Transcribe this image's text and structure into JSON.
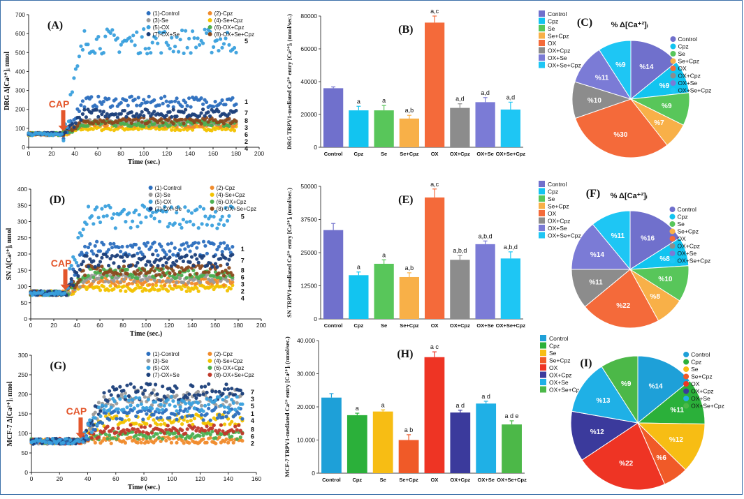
{
  "chart_data": [
    {
      "type": "scatter",
      "panel": "(A)",
      "cap_label": "CAP",
      "cap_x": 30,
      "xlabel": "Time (sec.)",
      "ylabel": "DRG Δ[Ca²⁺]ᵢ nmol",
      "xlim": [
        0,
        200
      ],
      "ylim": [
        0,
        700
      ],
      "xticks": [
        "0",
        "20",
        "40",
        "60",
        "80",
        "100",
        "120",
        "140",
        "160",
        "180",
        "200"
      ],
      "yticks": [
        "0",
        "100",
        "200",
        "300",
        "400",
        "500",
        "600",
        "700"
      ],
      "legend": [
        "(1)-Control",
        "(2)-Cpz",
        "(3)-Se",
        "(4)-Se+Cpz",
        "(5)-OX",
        "(6)-OX+Cpz",
        "(7)-OX+Se",
        "(8)-OX+Se+Cpz"
      ],
      "xmax": 180,
      "series": [
        {
          "name": "(1)-Control",
          "end": 240,
          "color": "#2c6fbf",
          "tag": "1"
        },
        {
          "name": "(2)-Cpz",
          "end": 120,
          "color": "#f08b2c",
          "tag": "2"
        },
        {
          "name": "(3)-Se",
          "end": 130,
          "color": "#9a9a9a",
          "tag": "3"
        },
        {
          "name": "(4)-Se+Cpz",
          "end": 100,
          "color": "#f2c200",
          "tag": "4"
        },
        {
          "name": "(5)-OX",
          "end": 560,
          "color": "#3aa0dd",
          "tag": "5"
        },
        {
          "name": "(6)-OX+Cpz",
          "end": 125,
          "color": "#4caf50",
          "tag": "6"
        },
        {
          "name": "(7)-OX+Se",
          "end": 180,
          "color": "#1b3f7a",
          "tag": "7"
        },
        {
          "name": "(8)-OX+Se+Cpz",
          "end": 140,
          "color": "#8b4a1e",
          "tag": "8"
        }
      ]
    },
    {
      "type": "bar",
      "panel": "(B)",
      "ylabel": "DRG TRPV1-mediated Ca²⁺ entry [Ca²⁺]ᵢ (nmol/sec.)",
      "ylim": [
        0,
        80000
      ],
      "yticks": [
        "0",
        "20000",
        "40000",
        "60000",
        "80000"
      ],
      "categories": [
        "Control",
        "Cpz",
        "Se",
        "Se+Cpz",
        "OX",
        "OX+Cpz",
        "OX+Se",
        "OX+Se+Cpz"
      ],
      "values": [
        36000,
        22500,
        22500,
        17500,
        76000,
        24000,
        27500,
        23000
      ],
      "errors": [
        800,
        2500,
        3000,
        2000,
        4000,
        2500,
        2800,
        4500
      ],
      "annotations": [
        "",
        "a",
        "a",
        "a,b",
        "a,c",
        "a,d",
        "a,d",
        "a,d"
      ],
      "colors": [
        "#7070cc",
        "#12c4f0",
        "#58c65a",
        "#f8b048",
        "#f46a3a",
        "#8c8c8c",
        "#7b7bd6",
        "#1ec6f4"
      ]
    },
    {
      "type": "pie",
      "panel": "(C)",
      "title": "% Δ[Ca⁺²]ᵢ",
      "labels": [
        "Control",
        "Cpz",
        "Se",
        "Se+Cpz",
        "OX",
        "OX+Cpz",
        "OX+Se",
        "OX+Se+Cpz"
      ],
      "values": [
        14,
        9,
        9,
        7,
        30,
        10,
        11,
        9
      ],
      "slice_labels": [
        "%14",
        "%9",
        "%9",
        "%7",
        "%30",
        "%10",
        "%11",
        "%9"
      ],
      "colors": [
        "#7070cc",
        "#12c4f0",
        "#58c65a",
        "#f8b048",
        "#f46a3a",
        "#8c8c8c",
        "#7b7bd6",
        "#1ec6f4"
      ]
    },
    {
      "type": "scatter",
      "panel": "(D)",
      "cap_label": "CAP",
      "cap_x": 30,
      "xlabel": "Time (sec.)",
      "ylabel": "SN Δ[Ca²⁺]ᵢ nmol",
      "xlim": [
        0,
        200
      ],
      "ylim": [
        0,
        400
      ],
      "xticks": [
        "0",
        "20",
        "40",
        "60",
        "80",
        "100",
        "120",
        "140",
        "160",
        "180",
        "200"
      ],
      "yticks": [
        "0",
        "50",
        "100",
        "150",
        "200",
        "250",
        "300",
        "350",
        "400"
      ],
      "legend": [
        "(1)-Control",
        "(2)-Cpz",
        "(3)-Se",
        "(4)-Se+Cpz",
        "(5)-OX",
        "(6)-OX+Cpz",
        "(7)-OX+Se",
        "(8)-OX+Se+Cpz"
      ],
      "xmax": 175,
      "series": [
        {
          "name": "(1)-Control",
          "end": 215,
          "color": "#2c6fbf",
          "tag": "1"
        },
        {
          "name": "(2)-Cpz",
          "end": 115,
          "color": "#f08b2c",
          "tag": "2"
        },
        {
          "name": "(3)-Se",
          "end": 125,
          "color": "#9a9a9a",
          "tag": "3"
        },
        {
          "name": "(4)-Se+Cpz",
          "end": 95,
          "color": "#f2c200",
          "tag": "4"
        },
        {
          "name": "(5)-OX",
          "end": 315,
          "color": "#3aa0dd",
          "tag": "5"
        },
        {
          "name": "(6)-OX+Cpz",
          "end": 140,
          "color": "#4caf50",
          "tag": "6"
        },
        {
          "name": "(7)-OX+Se",
          "end": 180,
          "color": "#1b3f7a",
          "tag": "7"
        },
        {
          "name": "(8)-OX+Se+Cpz",
          "end": 150,
          "color": "#8b4a1e",
          "tag": "8"
        }
      ]
    },
    {
      "type": "bar",
      "panel": "(E)",
      "ylabel": "SN TRPV1-mediated Ca²⁺ entry [Ca²⁺]ᵢ (nmol/sec.)",
      "ylim": [
        0,
        50000
      ],
      "yticks": [
        "0",
        "12500",
        "25000",
        "37500",
        "50000"
      ],
      "categories": [
        "Control",
        "Cpz",
        "Se",
        "Se+Cpz",
        "OX",
        "OX+Cpz",
        "OX+Se",
        "OX+Se+Cpz"
      ],
      "values": [
        33500,
        16500,
        20800,
        15800,
        45800,
        22300,
        28200,
        22800
      ],
      "errors": [
        2500,
        1200,
        1500,
        1600,
        3200,
        1600,
        1200,
        2500
      ],
      "annotations": [
        "",
        "a",
        "a",
        "a,b",
        "a,c",
        "a,b,d",
        "a,b,d",
        "a,b,d"
      ],
      "colors": [
        "#7070cc",
        "#12c4f0",
        "#58c65a",
        "#f8b048",
        "#f46a3a",
        "#8c8c8c",
        "#7b7bd6",
        "#1ec6f4"
      ]
    },
    {
      "type": "pie",
      "panel": "(F)",
      "title": "% Δ[Ca⁺²]ᵢ",
      "labels": [
        "Control",
        "Cpz",
        "Se",
        "Se+Cpz",
        "OX",
        "OX+Cpz",
        "OX+Se",
        "OX+Se+Cpz"
      ],
      "values": [
        16,
        8,
        10,
        8,
        22,
        11,
        14,
        11
      ],
      "slice_labels": [
        "%16",
        "%8",
        "%10",
        "%8",
        "%22",
        "%11",
        "%14",
        "%11"
      ],
      "colors": [
        "#7070cc",
        "#12c4f0",
        "#58c65a",
        "#f8b048",
        "#f46a3a",
        "#8c8c8c",
        "#7b7bd6",
        "#1ec6f4"
      ]
    },
    {
      "type": "scatter",
      "panel": "(G)",
      "cap_label": "CAP",
      "cap_x": 35,
      "xlabel": "Time (sec.)",
      "ylabel": "MCF-7 Δ[Ca²⁺]ᵢ nmol",
      "xlim": [
        0,
        160
      ],
      "ylim": [
        0,
        300
      ],
      "xticks": [
        "0",
        "20",
        "40",
        "60",
        "80",
        "100",
        "120",
        "140",
        "160"
      ],
      "yticks": [
        "0",
        "50",
        "100",
        "150",
        "200",
        "250",
        "300"
      ],
      "legend": [
        "(1)-Control",
        "(2)-Cpz",
        "(3)-Se",
        "(4)-Se+Cpz",
        "(5)-OX",
        "(6)-OX+Cpz",
        "(7)-OX+Se",
        "(8)-OX+Se+Cpz"
      ],
      "xmax": 150,
      "series": [
        {
          "name": "(1)-Control",
          "end": 150,
          "color": "#2c6fbf",
          "tag": "1"
        },
        {
          "name": "(2)-Cpz",
          "end": 82,
          "color": "#f08b2c",
          "tag": "2"
        },
        {
          "name": "(3)-Se",
          "end": 190,
          "color": "#9a9a9a",
          "tag": "3"
        },
        {
          "name": "(4)-Se+Cpz",
          "end": 135,
          "color": "#f2c200",
          "tag": "4"
        },
        {
          "name": "(5)-OX",
          "end": 175,
          "color": "#3aa0dd",
          "tag": "5"
        },
        {
          "name": "(6)-OX+Cpz",
          "end": 95,
          "color": "#4caf50",
          "tag": "6"
        },
        {
          "name": "(7)-OX+Se",
          "end": 205,
          "color": "#1b3f7a",
          "tag": "7"
        },
        {
          "name": "(8)-OX+Se+Cpz",
          "end": 110,
          "color": "#c0392b",
          "tag": "8"
        }
      ]
    },
    {
      "type": "bar",
      "panel": "(H)",
      "ylabel": "MCF-7 TRPV1-mediated Ca²⁺ entry [Ca²⁺]ᵢ (nmol/sec.)",
      "ylim": [
        0,
        40000
      ],
      "yticks": [
        "0",
        "10.000",
        "20.000",
        "30.000",
        "40.000"
      ],
      "categories": [
        "Control",
        "Cpz",
        "Se",
        "Se+Cpz",
        "OX",
        "OX+Cpz",
        "OX+Se",
        "OX+Se+Cpz"
      ],
      "values": [
        22800,
        17500,
        18600,
        10000,
        35000,
        18300,
        21000,
        14700
      ],
      "errors": [
        1200,
        600,
        500,
        1600,
        1600,
        700,
        700,
        1100
      ],
      "annotations": [
        "",
        "a",
        "a",
        "a b",
        "a c",
        "a d",
        "a d",
        "a d e"
      ],
      "colors": [
        "#1ea0d8",
        "#2bb03a",
        "#f7bd14",
        "#f05a28",
        "#ee3424",
        "#3b3a9c",
        "#1fb0e6",
        "#4cb848"
      ]
    },
    {
      "type": "pie",
      "panel": "(I)",
      "title": "% Δ[Ca⁺²]ᵢ",
      "labels": [
        "Control",
        "Cpz",
        "Se",
        "Se+Cpz",
        "OX",
        "OX+Cpz",
        "OX+Se",
        "OX+Se+Cpz"
      ],
      "values": [
        14,
        11,
        12,
        6,
        22,
        12,
        13,
        9
      ],
      "slice_labels": [
        "%14",
        "%11",
        "%12",
        "%6",
        "%22",
        "%12",
        "%13",
        "%9"
      ],
      "colors": [
        "#1ea0d8",
        "#2bb03a",
        "#f7bd14",
        "#f05a28",
        "#ee3424",
        "#3b3a9c",
        "#1fb0e6",
        "#4cb848"
      ]
    }
  ]
}
